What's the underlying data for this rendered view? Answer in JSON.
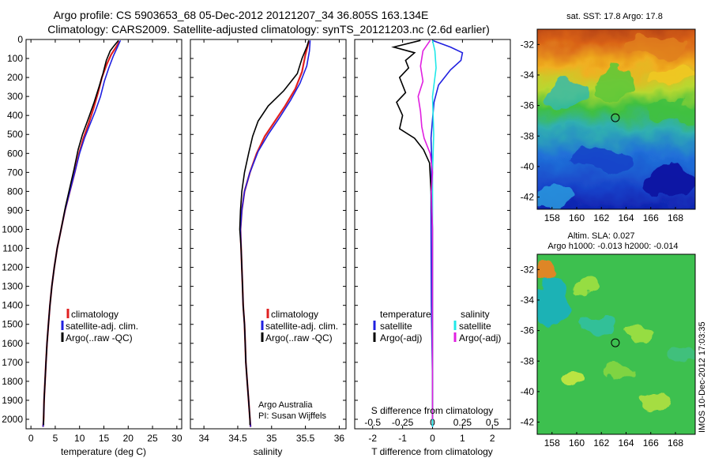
{
  "header": {
    "title_line1": "Argo profile: CS 5903653_68 05-Dec-2012 20121207_34 36.805S 163.134E",
    "title_line2": "Climatology: CARS2009. Satellite-adjusted climatology: synTS_20121203.nc (2.6d earlier)"
  },
  "colors": {
    "climatology": "#e02020",
    "satellite": "#2020e0",
    "argo": "#000000",
    "sal_satellite": "#20e8e8",
    "sal_argo": "#e020e0"
  },
  "depth_axis": {
    "ylim": [
      0,
      2050
    ],
    "ticks": [
      0,
      100,
      200,
      300,
      400,
      500,
      600,
      700,
      800,
      900,
      1000,
      1100,
      1200,
      1300,
      1400,
      1500,
      1600,
      1700,
      1800,
      1900,
      2000
    ]
  },
  "chart_data": [
    {
      "type": "line",
      "name": "temperature",
      "xlabel": "temperature (deg C)",
      "xlim": [
        -1,
        31
      ],
      "xticks": [
        0,
        5,
        10,
        15,
        20,
        25,
        30
      ],
      "legend": [
        "climatology",
        "satellite-adj. clim.",
        "Argo(..raw -QC)"
      ],
      "series": [
        {
          "name": "climatology",
          "color": "#e02020",
          "points": [
            [
              18.2,
              10
            ],
            [
              17.5,
              40
            ],
            [
              16.5,
              80
            ],
            [
              15.6,
              130
            ],
            [
              14.6,
              200
            ],
            [
              13.8,
              280
            ],
            [
              12.9,
              360
            ],
            [
              11.9,
              440
            ],
            [
              10.8,
              520
            ],
            [
              9.9,
              600
            ],
            [
              9.0,
              700
            ],
            [
              8.0,
              800
            ],
            [
              7.0,
              900
            ],
            [
              6.2,
              1000
            ],
            [
              5.4,
              1100
            ],
            [
              4.8,
              1200
            ],
            [
              4.3,
              1300
            ],
            [
              3.9,
              1400
            ],
            [
              3.6,
              1500
            ],
            [
              3.3,
              1600
            ],
            [
              3.1,
              1700
            ],
            [
              2.9,
              1800
            ],
            [
              2.7,
              1900
            ],
            [
              2.6,
              2000
            ],
            [
              2.5,
              2040
            ]
          ]
        },
        {
          "name": "satellite-adj. clim.",
          "color": "#2020e0",
          "points": [
            [
              18.4,
              5
            ],
            [
              17.8,
              40
            ],
            [
              16.9,
              90
            ],
            [
              16.0,
              150
            ],
            [
              15.1,
              220
            ],
            [
              14.3,
              300
            ],
            [
              13.2,
              380
            ],
            [
              12.1,
              450
            ],
            [
              11.0,
              520
            ],
            [
              10.0,
              600
            ],
            [
              9.0,
              700
            ],
            [
              8.0,
              800
            ],
            [
              7.0,
              900
            ],
            [
              6.2,
              1000
            ],
            [
              5.4,
              1100
            ],
            [
              4.8,
              1200
            ],
            [
              4.3,
              1300
            ],
            [
              3.9,
              1400
            ],
            [
              3.6,
              1500
            ],
            [
              3.3,
              1600
            ],
            [
              3.1,
              1700
            ],
            [
              2.9,
              1800
            ],
            [
              2.7,
              1900
            ],
            [
              2.6,
              2000
            ],
            [
              2.5,
              2040
            ]
          ]
        },
        {
          "name": "Argo(..raw -QC)",
          "color": "#000000",
          "points": [
            [
              18.0,
              5
            ],
            [
              17.2,
              30
            ],
            [
              16.3,
              60
            ],
            [
              15.5,
              110
            ],
            [
              14.8,
              180
            ],
            [
              14.0,
              250
            ],
            [
              13.0,
              330
            ],
            [
              11.9,
              410
            ],
            [
              10.6,
              500
            ],
            [
              9.7,
              580
            ],
            [
              8.9,
              680
            ],
            [
              8.0,
              780
            ],
            [
              7.1,
              880
            ],
            [
              6.2,
              1000
            ],
            [
              5.4,
              1100
            ],
            [
              4.8,
              1200
            ],
            [
              4.3,
              1300
            ],
            [
              3.9,
              1400
            ],
            [
              3.6,
              1500
            ],
            [
              3.3,
              1600
            ],
            [
              3.1,
              1700
            ],
            [
              2.9,
              1800
            ],
            [
              2.7,
              1900
            ],
            [
              2.6,
              2000
            ],
            [
              2.6,
              2030
            ]
          ]
        }
      ]
    },
    {
      "type": "line",
      "name": "salinity",
      "xlabel": "salinity",
      "xlim": [
        33.8,
        36.1
      ],
      "xticks": [
        34,
        34.5,
        35,
        35.5,
        36
      ],
      "xtick_labels": [
        "34",
        "34.5",
        "35",
        "35.5",
        "36"
      ],
      "legend": [
        "climatology",
        "satellite-adj. clim.",
        "Argo(..raw -QC)"
      ],
      "annotation": [
        "Argo Australia",
        "PI: Susan Wijffels"
      ],
      "series": [
        {
          "name": "climatology",
          "color": "#e02020",
          "points": [
            [
              35.55,
              10
            ],
            [
              35.5,
              80
            ],
            [
              35.45,
              170
            ],
            [
              35.35,
              260
            ],
            [
              35.2,
              350
            ],
            [
              35.05,
              430
            ],
            [
              34.9,
              510
            ],
            [
              34.78,
              600
            ],
            [
              34.68,
              700
            ],
            [
              34.6,
              800
            ],
            [
              34.56,
              900
            ],
            [
              34.54,
              1000
            ],
            [
              34.55,
              1100
            ],
            [
              34.56,
              1200
            ],
            [
              34.57,
              1300
            ],
            [
              34.58,
              1400
            ],
            [
              34.6,
              1500
            ],
            [
              34.61,
              1600
            ],
            [
              34.62,
              1700
            ],
            [
              34.64,
              1800
            ],
            [
              34.66,
              1900
            ],
            [
              34.68,
              2000
            ],
            [
              34.69,
              2040
            ]
          ]
        },
        {
          "name": "satellite-adj. clim.",
          "color": "#2020e0",
          "points": [
            [
              35.57,
              5
            ],
            [
              35.56,
              60
            ],
            [
              35.52,
              140
            ],
            [
              35.42,
              230
            ],
            [
              35.28,
              320
            ],
            [
              35.12,
              410
            ],
            [
              34.95,
              500
            ],
            [
              34.8,
              590
            ],
            [
              34.68,
              700
            ],
            [
              34.6,
              800
            ],
            [
              34.56,
              900
            ],
            [
              34.54,
              1000
            ],
            [
              34.55,
              1100
            ],
            [
              34.56,
              1200
            ],
            [
              34.57,
              1300
            ],
            [
              34.58,
              1400
            ],
            [
              34.6,
              1500
            ],
            [
              34.61,
              1600
            ],
            [
              34.62,
              1700
            ],
            [
              34.64,
              1800
            ],
            [
              34.66,
              1900
            ],
            [
              34.68,
              2000
            ],
            [
              34.69,
              2040
            ]
          ]
        },
        {
          "name": "Argo(..raw -QC)",
          "color": "#000000",
          "points": [
            [
              35.55,
              5
            ],
            [
              35.52,
              40
            ],
            [
              35.45,
              100
            ],
            [
              35.38,
              180
            ],
            [
              35.18,
              270
            ],
            [
              34.95,
              350
            ],
            [
              34.8,
              430
            ],
            [
              34.72,
              510
            ],
            [
              34.66,
              600
            ],
            [
              34.6,
              700
            ],
            [
              34.56,
              800
            ],
            [
              34.54,
              900
            ],
            [
              34.53,
              1000
            ],
            [
              34.55,
              1100
            ],
            [
              34.56,
              1200
            ],
            [
              34.57,
              1300
            ],
            [
              34.58,
              1400
            ],
            [
              34.6,
              1500
            ],
            [
              34.61,
              1600
            ],
            [
              34.62,
              1700
            ],
            [
              34.64,
              1800
            ],
            [
              34.66,
              1900
            ],
            [
              34.68,
              2000
            ],
            [
              34.68,
              2030
            ]
          ]
        }
      ]
    },
    {
      "type": "line",
      "name": "difference",
      "xlabel": "T difference from climatology",
      "xlim": [
        -2.6,
        2.6
      ],
      "xticks": [
        -2,
        -1,
        0,
        1,
        2
      ],
      "top_ticks": [
        -0.5,
        -0.25,
        0,
        0.25,
        0.5
      ],
      "top_label": "S difference from climatology",
      "legend_left": [
        "temperature",
        "satellite",
        "Argo(-adj)"
      ],
      "legend_right": [
        "salinity",
        "satellite",
        "Argo(-adj)"
      ],
      "series": [
        {
          "name": "T satellite",
          "color": "#2020e0",
          "points": [
            [
              0.0,
              5
            ],
            [
              0.6,
              40
            ],
            [
              1.0,
              70
            ],
            [
              0.95,
              110
            ],
            [
              0.6,
              160
            ],
            [
              0.2,
              240
            ],
            [
              0.05,
              330
            ],
            [
              0.0,
              420
            ],
            [
              -0.05,
              520
            ],
            [
              -0.03,
              620
            ],
            [
              -0.05,
              800
            ],
            [
              -0.05,
              1000
            ],
            [
              -0.04,
              1400
            ],
            [
              0.0,
              1800
            ],
            [
              0.0,
              2040
            ]
          ]
        },
        {
          "name": "T Argo(-adj)",
          "color": "#000000",
          "points": [
            [
              -0.4,
              5
            ],
            [
              -1.3,
              40
            ],
            [
              -0.6,
              70
            ],
            [
              -0.9,
              110
            ],
            [
              -0.8,
              150
            ],
            [
              -1.1,
              200
            ],
            [
              -0.9,
              280
            ],
            [
              -1.2,
              330
            ],
            [
              -1.0,
              400
            ],
            [
              -1.1,
              470
            ],
            [
              -0.6,
              520
            ],
            [
              -0.3,
              580
            ],
            [
              -0.1,
              650
            ],
            [
              -0.05,
              800
            ],
            [
              0.0,
              1000
            ],
            [
              0.0,
              2030
            ]
          ]
        },
        {
          "name": "S satellite",
          "color": "#20e8e8",
          "points": [
            [
              0.0,
              5
            ],
            [
              0.02,
              60
            ],
            [
              0.03,
              150
            ],
            [
              0.0,
              300
            ],
            [
              0.01,
              500
            ],
            [
              0.0,
              700
            ],
            [
              0.0,
              1000
            ],
            [
              0.0,
              1500
            ],
            [
              0.0,
              2040
            ]
          ]
        },
        {
          "name": "S Argo(-adj)",
          "color": "#e020e0",
          "points": [
            [
              -0.02,
              5
            ],
            [
              -0.08,
              60
            ],
            [
              -0.1,
              140
            ],
            [
              -0.08,
              220
            ],
            [
              -0.12,
              300
            ],
            [
              -0.1,
              380
            ],
            [
              -0.09,
              460
            ],
            [
              -0.07,
              520
            ],
            [
              -0.02,
              600
            ],
            [
              0.0,
              700
            ],
            [
              -0.01,
              800
            ],
            [
              0.0,
              1000
            ],
            [
              0.0,
              2000
            ]
          ]
        }
      ]
    },
    {
      "type": "heatmap",
      "name": "sst_map",
      "title": "sat. SST: 17.8  Argo: 17.8",
      "xlim": [
        156.8,
        169.6
      ],
      "ylim": [
        -42.8,
        -31.0
      ],
      "xticks": [
        158,
        160,
        162,
        164,
        166,
        168
      ],
      "yticks": [
        -32,
        -34,
        -36,
        -38,
        -40,
        -42
      ],
      "marker": [
        163.13,
        -36.8
      ]
    },
    {
      "type": "heatmap",
      "name": "sla_map",
      "title_line1": "Altim. SLA: 0.027",
      "title_line2": "Argo h1000: -0.013 h2000: -0.014",
      "xlim": [
        156.8,
        169.6
      ],
      "ylim": [
        -42.8,
        -31.0
      ],
      "xticks": [
        158,
        160,
        162,
        164,
        166,
        168
      ],
      "yticks": [
        -32,
        -34,
        -36,
        -38,
        -40,
        -42
      ],
      "marker": [
        163.13,
        -36.8
      ]
    }
  ],
  "footer": {
    "stamp": "IMOS 10-Dec-2012 17:03:35"
  }
}
